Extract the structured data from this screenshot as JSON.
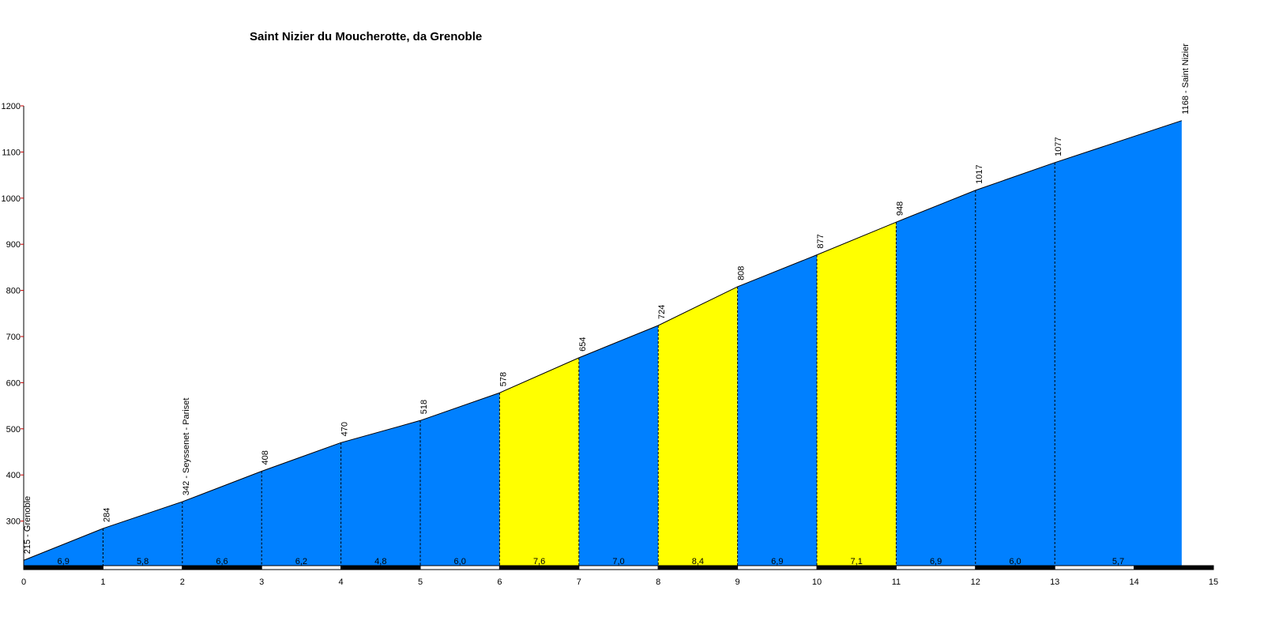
{
  "chart_data": {
    "type": "area",
    "title": "Saint Nizier du Moucherotte, da Grenoble",
    "xlabel": "",
    "ylabel": "",
    "xlim": [
      0,
      15
    ],
    "ylim": [
      200,
      1200
    ],
    "x_ticks": [
      "0",
      "1",
      "2",
      "3",
      "4",
      "5",
      "6",
      "7",
      "8",
      "9",
      "10",
      "11",
      "12",
      "13",
      "14",
      "15"
    ],
    "y_ticks": [
      "300",
      "400",
      "500",
      "600",
      "700",
      "800",
      "900",
      "1000",
      "1100",
      "1200"
    ],
    "profile": {
      "x": [
        0,
        1,
        2,
        3,
        4,
        5,
        6,
        7,
        8,
        9,
        10,
        11,
        12,
        13,
        14.6
      ],
      "elevation": [
        215,
        284,
        342,
        408,
        470,
        518,
        578,
        654,
        724,
        808,
        877,
        948,
        1017,
        1077,
        1168
      ],
      "point_labels": [
        "215 - Grenoble",
        "284",
        "342 - Seyssenet - Pariset",
        "408",
        "470",
        "518",
        "578",
        "654",
        "724",
        "808",
        "877",
        "948",
        "1017",
        "1077",
        "1168 - Saint Nizier"
      ]
    },
    "segments": [
      {
        "gradient": "6,9",
        "color": "blue"
      },
      {
        "gradient": "5,8",
        "color": "blue"
      },
      {
        "gradient": "6,6",
        "color": "blue"
      },
      {
        "gradient": "6,2",
        "color": "blue"
      },
      {
        "gradient": "4,8",
        "color": "blue"
      },
      {
        "gradient": "6,0",
        "color": "blue"
      },
      {
        "gradient": "7,6",
        "color": "yellow"
      },
      {
        "gradient": "7,0",
        "color": "blue"
      },
      {
        "gradient": "8,4",
        "color": "yellow"
      },
      {
        "gradient": "6,9",
        "color": "blue"
      },
      {
        "gradient": "7,1",
        "color": "yellow"
      },
      {
        "gradient": "6,9",
        "color": "blue"
      },
      {
        "gradient": "6,0",
        "color": "blue"
      },
      {
        "gradient": "5,7",
        "color": "blue"
      }
    ],
    "colors": {
      "blue": "#0080ff",
      "yellow": "#ffff00",
      "axis": "#000000",
      "y_tick_mark": "#cc0000"
    },
    "grid": false,
    "legend": "none"
  }
}
